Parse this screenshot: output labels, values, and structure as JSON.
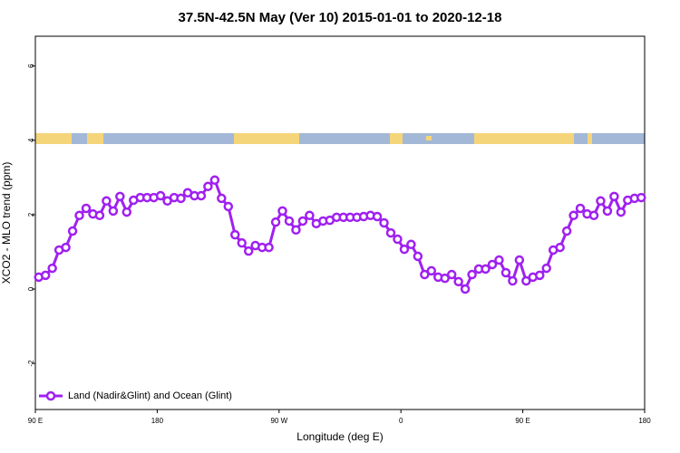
{
  "chart_data": {
    "type": "line",
    "title": "37.5N-42.5N May (Ver 10)   2015-01-01 to 2020-12-18",
    "xlabel": "Longitude (deg E)",
    "ylabel": "XCO2 - MLO trend (ppm)",
    "xlim": [
      90,
      540
    ],
    "ylim": [
      -3.24,
      6.8
    ],
    "xticks": [
      {
        "value": 90,
        "label": "90 E"
      },
      180,
      {
        "value": 270,
        "label": "90 W"
      },
      {
        "value": 360,
        "label": "0"
      },
      {
        "value": 450,
        "label": "90 E"
      },
      {
        "value": 540,
        "label": "180"
      }
    ],
    "yticks": [
      -2,
      0,
      2,
      4,
      6
    ],
    "legend": "bottom-left",
    "x": [
      92.5,
      97.5,
      102.5,
      107.5,
      112.5,
      117.5,
      122.5,
      127.5,
      132.5,
      137.5,
      142.5,
      147.5,
      152.5,
      157.5,
      162.5,
      167.5,
      172.5,
      177.5,
      182.5,
      187.5,
      192.5,
      197.5,
      202.5,
      207.5,
      212.5,
      217.5,
      222.5,
      227.5,
      232.5,
      237.5,
      242.5,
      247.5,
      252.5,
      257.5,
      262.5,
      267.5,
      272.5,
      277.5,
      282.5,
      287.5,
      292.5,
      297.5,
      302.5,
      307.5,
      312.5,
      317.5,
      322.5,
      327.5,
      332.5,
      337.5,
      342.5,
      347.5,
      352.5,
      357.5,
      362.5,
      367.5,
      372.5,
      377.5,
      382.5,
      387.5,
      392.5,
      397.5,
      402.5,
      407.5,
      412.5,
      417.5,
      422.5,
      427.5,
      432.5,
      437.5,
      442.5,
      447.5,
      452.5,
      457.5,
      462.5,
      467.5,
      472.5,
      477.5,
      482.5,
      487.5,
      492.5,
      497.5,
      502.5,
      507.5,
      512.5,
      517.5,
      522.5,
      527.5,
      532.5,
      537.5
    ],
    "series": [
      {
        "name": "Land (Nadir&Glint) and Ocean (Glint)",
        "color": "#a020f0",
        "values": [
          0.32,
          0.37,
          0.56,
          1.05,
          1.12,
          1.56,
          1.98,
          2.17,
          2.02,
          1.98,
          2.37,
          2.1,
          2.49,
          2.07,
          2.39,
          2.46,
          2.46,
          2.46,
          2.51,
          2.37,
          2.46,
          2.44,
          2.59,
          2.51,
          2.51,
          2.76,
          2.93,
          2.44,
          2.22,
          1.46,
          1.24,
          1.02,
          1.17,
          1.12,
          1.12,
          1.8,
          2.1,
          1.83,
          1.59,
          1.83,
          1.98,
          1.76,
          1.83,
          1.85,
          1.93,
          1.93,
          1.93,
          1.93,
          1.95,
          1.98,
          1.95,
          1.78,
          1.51,
          1.34,
          1.07,
          1.2,
          0.88,
          0.39,
          0.49,
          0.32,
          0.29,
          0.39,
          0.2,
          0.0,
          0.39,
          0.54,
          0.54,
          0.66,
          0.78,
          0.44,
          0.22,
          0.78,
          0.22,
          0.32,
          0.37,
          0.56,
          1.05,
          1.12,
          1.56,
          1.98,
          2.17,
          2.02,
          1.98,
          2.37,
          2.1,
          2.49,
          2.07,
          2.39,
          2.44,
          2.46
        ]
      }
    ]
  }
}
